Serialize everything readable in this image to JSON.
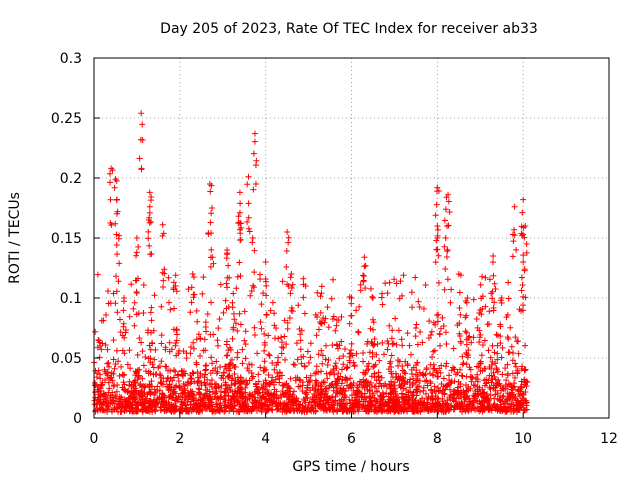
{
  "chart_data": {
    "type": "scatter",
    "title": "Day 205 of 2023, Rate Of TEC Index for receiver ab33",
    "xlabel": "GPS time / hours",
    "ylabel": "ROTI / TECUs",
    "xlim": [
      0,
      12
    ],
    "ylim": [
      0,
      0.3
    ],
    "xticks": [
      "0",
      "2",
      "4",
      "6",
      "8",
      "10",
      "12"
    ],
    "yticks": [
      "0",
      "0.05",
      "0.1",
      "0.15",
      "0.2",
      "0.25",
      "0.3"
    ],
    "grid": true,
    "legend": "none",
    "marker": "plus",
    "color": "#ff0000",
    "peak_points": [
      {
        "x": 0.1,
        "y": 0.065
      },
      {
        "x": 0.4,
        "y": 0.208
      },
      {
        "x": 0.5,
        "y": 0.199
      },
      {
        "x": 0.55,
        "y": 0.172
      },
      {
        "x": 0.7,
        "y": 0.1
      },
      {
        "x": 1.0,
        "y": 0.15
      },
      {
        "x": 1.1,
        "y": 0.254
      },
      {
        "x": 1.3,
        "y": 0.188
      },
      {
        "x": 1.3,
        "y": 0.176
      },
      {
        "x": 1.6,
        "y": 0.161
      },
      {
        "x": 1.9,
        "y": 0.11
      },
      {
        "x": 2.3,
        "y": 0.12
      },
      {
        "x": 2.7,
        "y": 0.195
      },
      {
        "x": 2.75,
        "y": 0.175
      },
      {
        "x": 3.1,
        "y": 0.14
      },
      {
        "x": 3.4,
        "y": 0.188
      },
      {
        "x": 3.4,
        "y": 0.171
      },
      {
        "x": 3.6,
        "y": 0.201
      },
      {
        "x": 3.75,
        "y": 0.237
      },
      {
        "x": 3.7,
        "y": 0.15
      },
      {
        "x": 4.0,
        "y": 0.13
      },
      {
        "x": 4.5,
        "y": 0.155
      },
      {
        "x": 4.6,
        "y": 0.12
      },
      {
        "x": 5.3,
        "y": 0.104
      },
      {
        "x": 6.0,
        "y": 0.1
      },
      {
        "x": 6.3,
        "y": 0.134
      },
      {
        "x": 6.5,
        "y": 0.1
      },
      {
        "x": 7.5,
        "y": 0.075
      },
      {
        "x": 8.0,
        "y": 0.192
      },
      {
        "x": 8.0,
        "y": 0.16
      },
      {
        "x": 8.25,
        "y": 0.186
      },
      {
        "x": 8.2,
        "y": 0.174
      },
      {
        "x": 8.5,
        "y": 0.12
      },
      {
        "x": 8.7,
        "y": 0.1
      },
      {
        "x": 9.0,
        "y": 0.09
      },
      {
        "x": 9.3,
        "y": 0.135
      },
      {
        "x": 9.5,
        "y": 0.1
      },
      {
        "x": 9.8,
        "y": 0.176
      },
      {
        "x": 10.0,
        "y": 0.182
      },
      {
        "x": 10.05,
        "y": 0.16
      },
      {
        "x": 10.0,
        "y": 0.13
      }
    ],
    "bulk_profile": {
      "x_range": [
        0,
        10.1
      ],
      "typical_y": 0.025,
      "min_y": 0.005,
      "dense_band_max_y": 0.09,
      "note_visible": ""
    }
  }
}
